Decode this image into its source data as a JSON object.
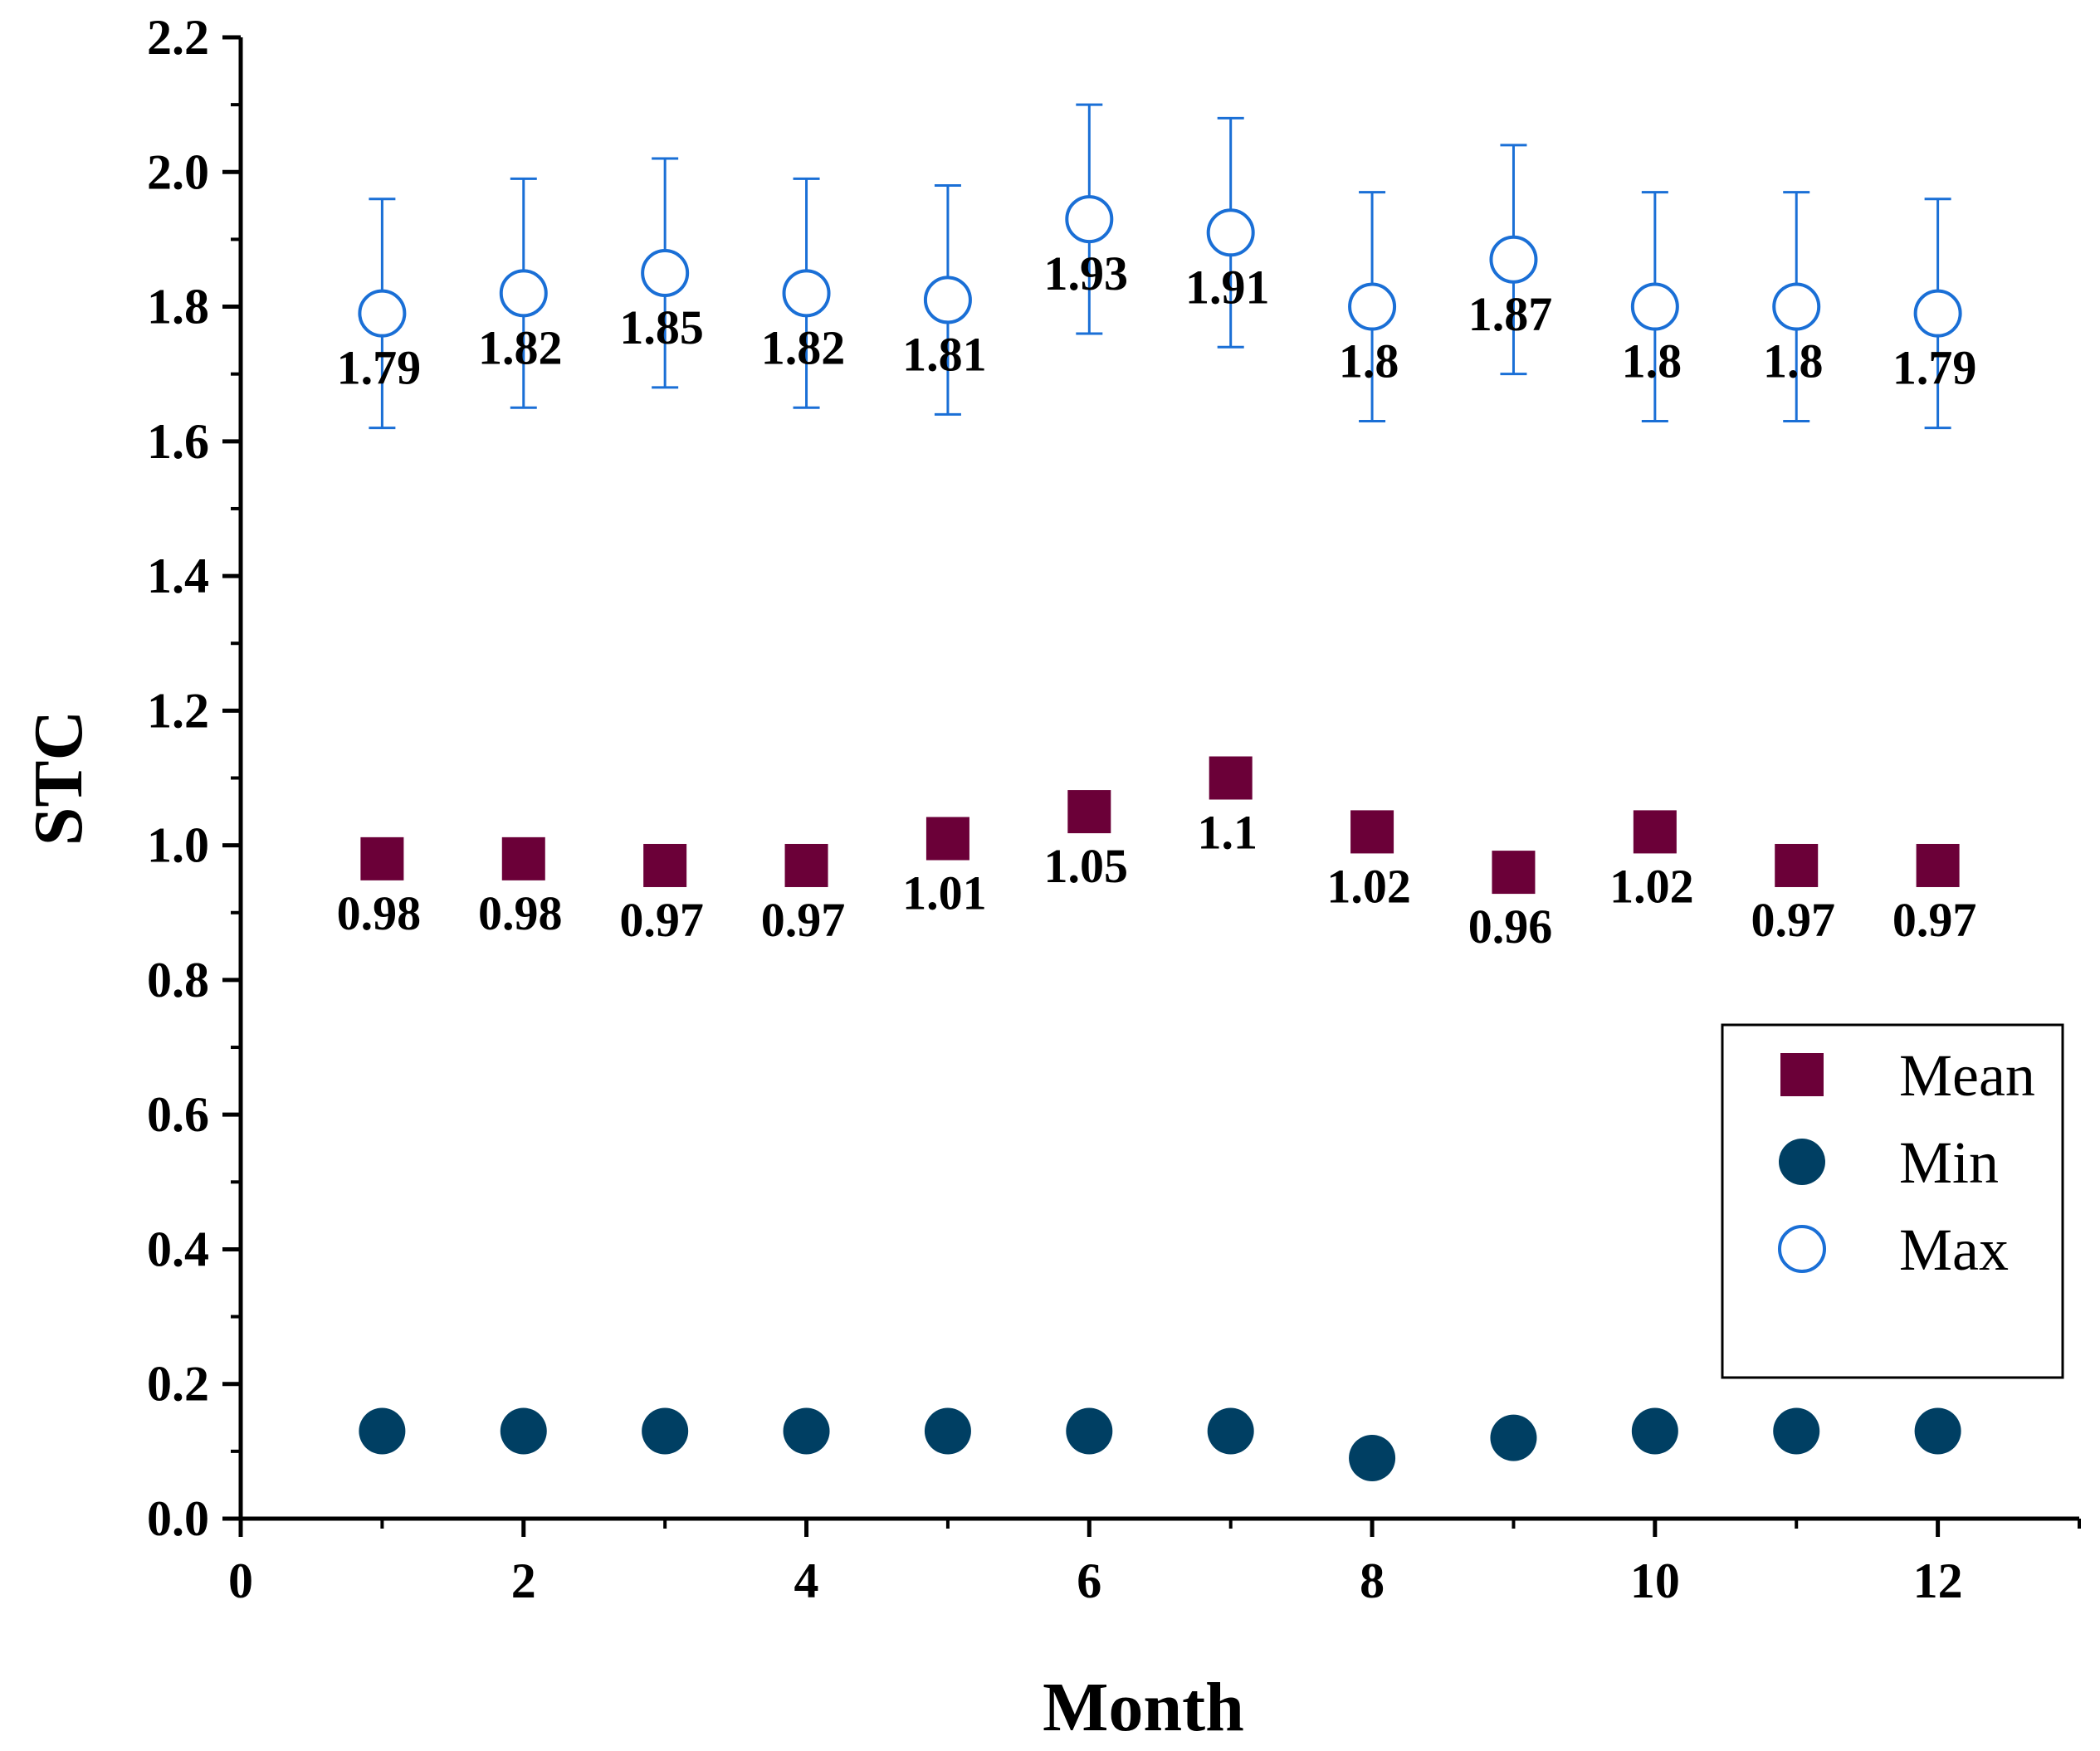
{
  "chart_data": {
    "type": "scatter",
    "title": "",
    "xlabel": "Month",
    "ylabel": "STC",
    "xlim": [
      0,
      13
    ],
    "ylim": [
      0,
      2.2
    ],
    "x_ticks": [
      "0",
      "2",
      "4",
      "6",
      "8",
      "10",
      "12"
    ],
    "y_ticks": [
      "0.0",
      "0.2",
      "0.4",
      "0.6",
      "0.8",
      "1.0",
      "1.2",
      "1.4",
      "1.6",
      "1.8",
      "2.0",
      "2.2"
    ],
    "x": [
      1,
      2,
      3,
      4,
      5,
      6,
      7,
      8,
      9,
      10,
      11,
      12
    ],
    "series": [
      {
        "name": "Mean",
        "marker": "filled-square",
        "color": "#6b0038",
        "values": [
          0.98,
          0.98,
          0.97,
          0.97,
          1.01,
          1.05,
          1.1,
          1.02,
          0.96,
          1.02,
          0.97,
          0.97
        ],
        "labels": [
          "0.98",
          "0.98",
          "0.97",
          "0.97",
          "1.01",
          "1.05",
          "1.1",
          "1.02",
          "0.96",
          "1.02",
          "0.97",
          "0.97"
        ],
        "label_position": [
          "below",
          "below",
          "below",
          "below",
          "below",
          "below",
          "below",
          "below",
          "below",
          "below",
          "below",
          "below"
        ]
      },
      {
        "name": "Min",
        "marker": "filled-circle",
        "color": "#003f63",
        "values": [
          0.13,
          0.13,
          0.13,
          0.13,
          0.13,
          0.13,
          0.13,
          0.09,
          0.12,
          0.13,
          0.13,
          0.13
        ]
      },
      {
        "name": "Max",
        "marker": "open-circle",
        "color": "#1a6fd6",
        "values": [
          1.79,
          1.82,
          1.85,
          1.82,
          1.81,
          1.93,
          1.91,
          1.8,
          1.87,
          1.8,
          1.8,
          1.79
        ],
        "error_low": [
          1.62,
          1.65,
          1.68,
          1.65,
          1.64,
          1.76,
          1.74,
          1.63,
          1.7,
          1.63,
          1.63,
          1.62
        ],
        "error_high": [
          1.96,
          1.99,
          2.02,
          1.99,
          1.98,
          2.1,
          2.08,
          1.97,
          2.04,
          1.97,
          1.97,
          1.96
        ],
        "labels": [
          "1.79",
          "1.82",
          "1.85",
          "1.82",
          "1.81",
          "1.93",
          "1.91",
          "1.8",
          "1.87",
          "1.8",
          "1.8",
          "1.79"
        ]
      }
    ],
    "legend": {
      "position": "right",
      "entries": [
        "Mean",
        "Min",
        "Max"
      ]
    }
  }
}
